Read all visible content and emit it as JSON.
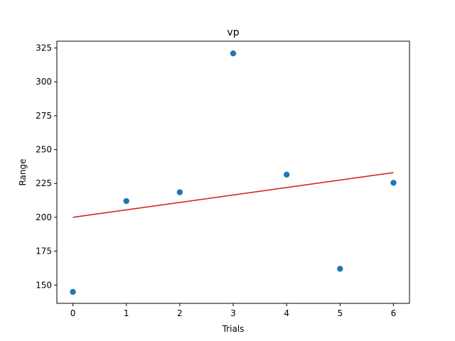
{
  "chart_data": {
    "type": "scatter",
    "title": "vp",
    "xlabel": "Trials",
    "ylabel": "Range",
    "xlim": [
      -0.3,
      6.3
    ],
    "ylim": [
      136.5,
      330
    ],
    "xticks": [
      0,
      1,
      2,
      3,
      4,
      5,
      6
    ],
    "yticks": [
      150,
      175,
      200,
      225,
      250,
      275,
      300,
      325
    ],
    "grid": false,
    "points": {
      "x": [
        0,
        1,
        2,
        3,
        4,
        5,
        6
      ],
      "y": [
        145,
        212,
        218.5,
        321,
        231.5,
        162,
        225.5
      ],
      "color": "#1f77b4"
    },
    "fit_line": {
      "x": [
        0,
        6
      ],
      "y": [
        200,
        233
      ],
      "color": "#d62728"
    }
  }
}
